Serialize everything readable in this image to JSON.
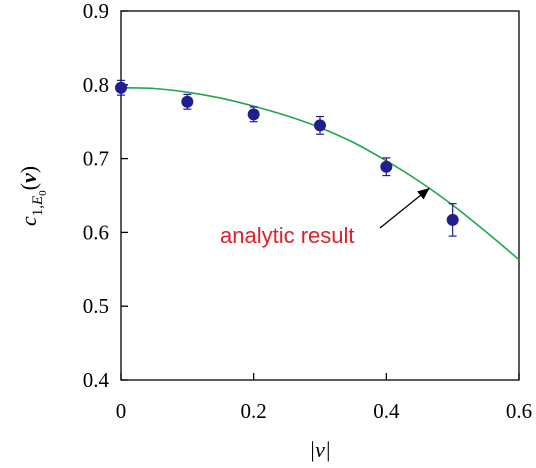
{
  "chart_data": {
    "type": "scatter",
    "xlim": [
      0,
      0.6
    ],
    "ylim": [
      0.4,
      0.9
    ],
    "x_ticks": [
      0,
      0.2,
      0.4,
      0.6
    ],
    "x_tick_labels": [
      "0",
      "0.2",
      "0.4",
      "0.6"
    ],
    "y_ticks": [
      0.4,
      0.5,
      0.6,
      0.7,
      0.8,
      0.9
    ],
    "y_tick_labels": [
      "0.4",
      "0.5",
      "0.6",
      "0.7",
      "0.8",
      "0.9"
    ],
    "xlabel": "|v|",
    "ylabel": "c1,E0(v)",
    "grid": false,
    "series": [
      {
        "kind": "points-with-errorbars",
        "color": "#1f1f8f",
        "x": [
          0,
          0.1,
          0.2,
          0.3,
          0.4,
          0.5
        ],
        "y": [
          0.796,
          0.777,
          0.76,
          0.745,
          0.689,
          0.617
        ],
        "error": [
          0.01,
          0.01,
          0.01,
          0.012,
          0.012,
          0.022
        ]
      },
      {
        "kind": "line",
        "name": "analytic result",
        "color": "#1fa84b",
        "x": [
          0,
          0.05,
          0.1,
          0.15,
          0.2,
          0.25,
          0.3,
          0.35,
          0.4,
          0.45,
          0.5,
          0.55,
          0.6
        ],
        "y": [
          0.796,
          0.795,
          0.79,
          0.782,
          0.771,
          0.758,
          0.742,
          0.722,
          0.697,
          0.669,
          0.637,
          0.601,
          0.563
        ]
      }
    ],
    "annotation": {
      "text": "analytic result",
      "color": "#e0202a",
      "arrow_to": [
        0.465,
        0.66
      ]
    }
  }
}
